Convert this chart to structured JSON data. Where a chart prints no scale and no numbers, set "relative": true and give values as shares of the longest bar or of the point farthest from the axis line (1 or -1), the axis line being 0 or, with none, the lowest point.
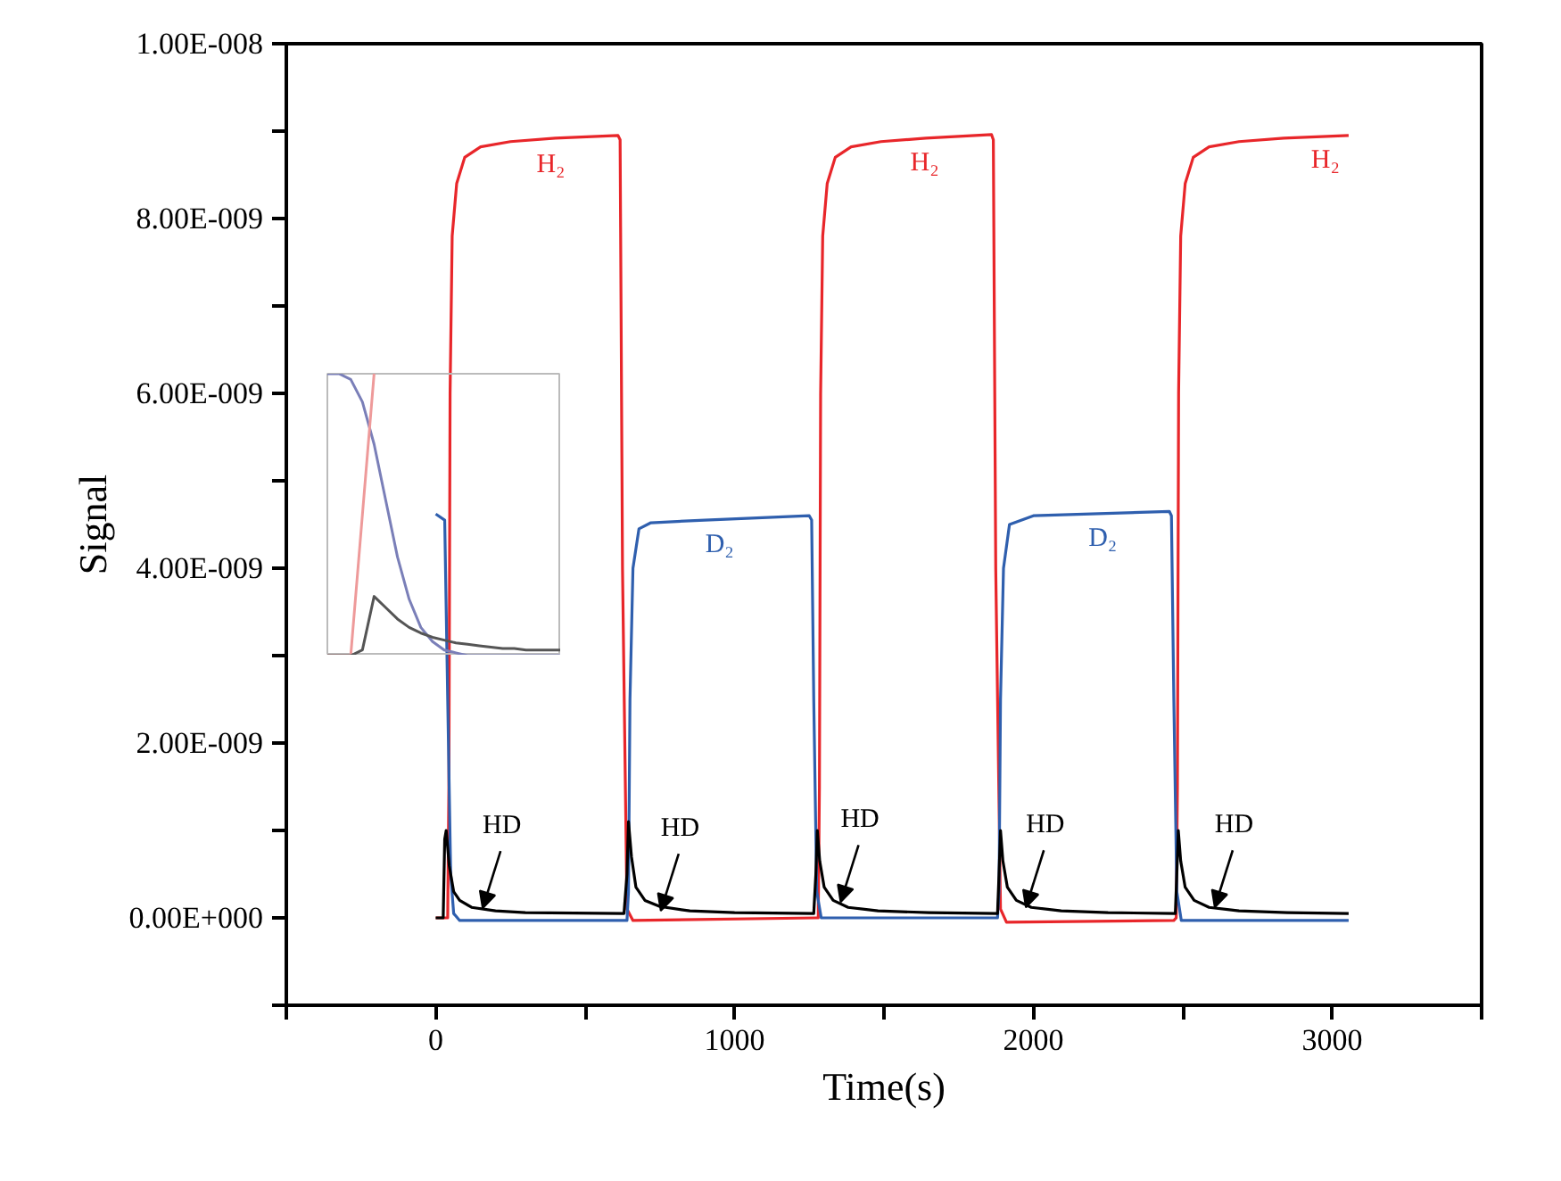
{
  "chart_data": [
    {
      "type": "line",
      "xlabel": "Time(s)",
      "ylabel": "Signal",
      "xlim": [
        -500,
        3500
      ],
      "ylim": [
        -1e-09,
        1e-08
      ],
      "xticks": [
        {
          "value": -500,
          "label": null
        },
        0,
        {
          "value": 500,
          "label": null
        },
        1000,
        {
          "value": 1500,
          "label": null
        },
        2000,
        {
          "value": 2500,
          "label": null
        },
        3000,
        {
          "value": 3500,
          "label": null
        }
      ],
      "yticks": [
        {
          "value": -1e-09,
          "label": null
        },
        {
          "value": 0,
          "label": "0.00E+000"
        },
        {
          "value": 1e-09,
          "label": null
        },
        {
          "value": 2e-09,
          "label": "2.00E-009"
        },
        {
          "value": 3e-09,
          "label": null
        },
        {
          "value": 4e-09,
          "label": "4.00E-009"
        },
        {
          "value": 5e-09,
          "label": null
        },
        {
          "value": 6e-09,
          "label": "6.00E-009"
        },
        {
          "value": 7e-09,
          "label": null
        },
        {
          "value": 8e-09,
          "label": "8.00E-009"
        },
        {
          "value": 9e-09,
          "label": null
        },
        {
          "value": 1e-08,
          "label": "1.00E-008"
        }
      ],
      "grid": false,
      "line_style": "solid",
      "marker": "none",
      "series": [
        {
          "color": "#e8262a",
          "x": [
            0,
            40,
            44,
            48,
            55,
            70,
            97,
            150,
            250,
            400,
            610,
            617,
            625,
            640,
            660,
            1270,
            1280,
            1284,
            1288,
            1295,
            1310,
            1337,
            1390,
            1490,
            1640,
            1860,
            1866,
            1874,
            1890,
            1910,
            2470,
            2478,
            2482,
            2486,
            2493,
            2508,
            2535,
            2588,
            2688,
            2838,
            3055
          ],
          "values": [
            0,
            0,
            1.5e-09,
            6e-09,
            7.8e-09,
            8.4e-09,
            8.7e-09,
            8.82e-09,
            8.88e-09,
            8.92e-09,
            8.95e-09,
            8.9e-09,
            4e-09,
            1e-10,
            -3e-11,
            0,
            0,
            1.5e-09,
            6e-09,
            7.8e-09,
            8.4e-09,
            8.7e-09,
            8.82e-09,
            8.88e-09,
            8.92e-09,
            8.96e-09,
            8.9e-09,
            4e-09,
            1e-10,
            -5e-11,
            -3e-11,
            0,
            1.5e-09,
            6e-09,
            7.8e-09,
            8.4e-09,
            8.7e-09,
            8.82e-09,
            8.88e-09,
            8.92e-09,
            8.95e-09
          ]
        },
        {
          "color": "#2f5fae",
          "x": [
            0,
            30,
            40,
            50,
            60,
            80,
            640,
            645,
            650,
            660,
            680,
            720,
            900,
            1250,
            1258,
            1265,
            1275,
            1290,
            1880,
            1885,
            1890,
            1900,
            1920,
            2000,
            2455,
            2462,
            2470,
            2480,
            2495,
            3055
          ],
          "values": [
            4.62e-09,
            4.55e-09,
            2.5e-09,
            5e-10,
            5e-11,
            -3e-11,
            -3e-11,
            3e-10,
            2.5e-09,
            4e-09,
            4.45e-09,
            4.52e-09,
            4.55e-09,
            4.6e-09,
            4.55e-09,
            2.5e-09,
            3e-10,
            0,
            0,
            3e-10,
            2.5e-09,
            4e-09,
            4.5e-09,
            4.6e-09,
            4.65e-09,
            4.6e-09,
            2.5e-09,
            3e-10,
            -3e-11,
            -3e-11
          ]
        },
        {
          "color": "#000000",
          "x": [
            0,
            25,
            30,
            35,
            45,
            60,
            80,
            120,
            200,
            300,
            630,
            640,
            645,
            655,
            670,
            700,
            750,
            850,
            1000,
            1265,
            1272,
            1277,
            1285,
            1300,
            1330,
            1380,
            1480,
            1650,
            1880,
            1885,
            1890,
            1898,
            1913,
            1943,
            1993,
            2093,
            2250,
            2475,
            2480,
            2485,
            2493,
            2508,
            2538,
            2588,
            2688,
            2850,
            3055
          ],
          "values": [
            0,
            0,
            9e-10,
            1e-09,
            6e-10,
            3e-10,
            2e-10,
            1.2e-10,
            8e-11,
            6e-11,
            5e-11,
            5e-10,
            1.1e-09,
            7e-10,
            3.5e-10,
            2e-10,
            1.3e-10,
            8e-11,
            6e-11,
            5e-11,
            5e-10,
            1e-09,
            6.5e-10,
            3.5e-10,
            2e-10,
            1.2e-10,
            8e-11,
            6e-11,
            5e-11,
            5e-10,
            1e-09,
            6.5e-10,
            3.5e-10,
            2e-10,
            1.2e-10,
            8e-11,
            6e-11,
            5e-11,
            5e-10,
            1e-09,
            6.5e-10,
            3.5e-10,
            2e-10,
            1.2e-10,
            8e-11,
            6e-11,
            5e-11
          ]
        }
      ],
      "annotations": [
        {
          "text": "H₂",
          "x": 385,
          "y": 8.9e-09
        },
        {
          "text": "H₂",
          "x": 1636,
          "y": 8.92e-09
        },
        {
          "text": "H₂",
          "x": 2977,
          "y": 8.95e-09
        },
        {
          "text": "D₂",
          "x": 950,
          "y": 4.55e-09
        },
        {
          "text": "D₂",
          "x": 2232,
          "y": 4.62e-09
        },
        {
          "text": "HD",
          "x": 157,
          "y": 1.1e-10
        },
        {
          "text": "HD",
          "x": 753,
          "y": 8e-11
        },
        {
          "text": "HD",
          "x": 1355,
          "y": 1.8e-10
        },
        {
          "text": "HD",
          "x": 1975,
          "y": 1.2e-10
        },
        {
          "text": "HD",
          "x": 2607,
          "y": 1.2e-10
        }
      ]
    },
    {
      "type": "line",
      "relative": true,
      "tick_labels": false,
      "grid": false,
      "categories": [
        null,
        null,
        null,
        null,
        null,
        null,
        null,
        null,
        null,
        null,
        null,
        null,
        null,
        null,
        null,
        null,
        null,
        null,
        null,
        null,
        null
      ],
      "series": [
        {
          "color": "#7a7fb8",
          "values": [
            1,
            1,
            0.98,
            0.9,
            0.75,
            0.55,
            0.35,
            0.2,
            0.1,
            0.05,
            0.02,
            0.01,
            0,
            0,
            0,
            0,
            0,
            0,
            0,
            0,
            0
          ]
        },
        {
          "color": "#ee9a9a",
          "values": [
            0,
            0,
            0,
            0.5,
            1,
            null,
            null,
            null,
            null,
            null,
            null,
            null,
            null,
            null,
            null,
            null,
            null,
            null,
            null,
            null,
            null
          ]
        },
        {
          "color": "#555555",
          "values": [
            0,
            0,
            0,
            0.02,
            0.21,
            0.17,
            0.13,
            0.1,
            0.08,
            0.065,
            0.055,
            0.045,
            0.04,
            0.035,
            0.03,
            0.025,
            0.025,
            0.02,
            0.02,
            0.02,
            0.02
          ]
        }
      ]
    }
  ]
}
